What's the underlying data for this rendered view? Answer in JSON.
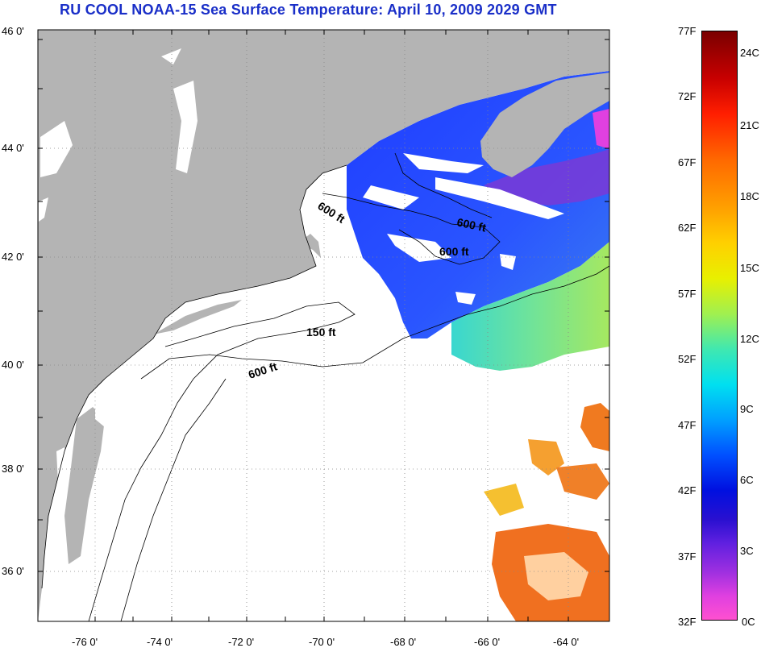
{
  "title": "RU COOL  NOAA-15  Sea Surface Temperature:  April 10, 2009 2029 GMT",
  "map": {
    "lat_range": [
      35,
      46
    ],
    "lon_range": [
      -77,
      -63
    ],
    "lat_ticks": [
      "46 0'",
      "44 0'",
      "42 0'",
      "40 0'",
      "38 0'",
      "36 0'"
    ],
    "lon_ticks": [
      "-76 0'",
      "-74 0'",
      "-72 0'",
      "-70 0'",
      "-68 0'",
      "-66 0'",
      "-64 0'"
    ],
    "land_color": "#b4b4b4",
    "grid": "dotted",
    "isobath_labels": [
      "600 ft",
      "600 ft",
      "600 ft",
      "150 ft",
      "600 ft"
    ]
  },
  "colorbar": {
    "fahrenheit_labels": [
      "77F",
      "72F",
      "67F",
      "62F",
      "57F",
      "52F",
      "47F",
      "42F",
      "37F",
      "32F"
    ],
    "celsius_labels": [
      "24C",
      "21C",
      "18C",
      "15C",
      "12C",
      "9C",
      "6C",
      "3C",
      "0C"
    ]
  }
}
